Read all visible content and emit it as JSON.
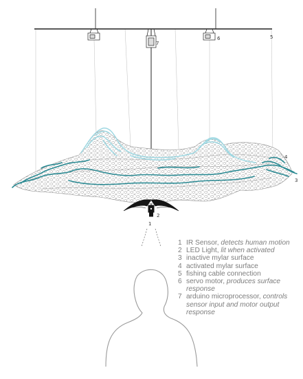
{
  "colors": {
    "frame": "#222222",
    "wire": "#bcbcbc",
    "mesh": "#6f6f6f",
    "active_light": "#9fd8e2",
    "active_dark": "#2b8a93",
    "silhouette": "#9a9a9a",
    "legend_text": "#7d7d7d"
  },
  "callouts": [
    "1",
    "2",
    "3",
    "4",
    "5",
    "6",
    "7"
  ],
  "legend": [
    {
      "number": "1",
      "label": "IR Sensor,",
      "description": "detects human motion"
    },
    {
      "number": "2",
      "label": "LED Light,",
      "description": "lit when activated"
    },
    {
      "number": "3",
      "label": "inactive mylar surface",
      "description": ""
    },
    {
      "number": "4",
      "label": "activated mylar surface",
      "description": ""
    },
    {
      "number": "5",
      "label": "fishing cable connection",
      "description": ""
    },
    {
      "number": "6",
      "label": "servo motor,",
      "description": "produces surface response"
    },
    {
      "number": "7",
      "label": "arduino microprocessor,",
      "description": "controls sensor input and motor output response"
    }
  ]
}
